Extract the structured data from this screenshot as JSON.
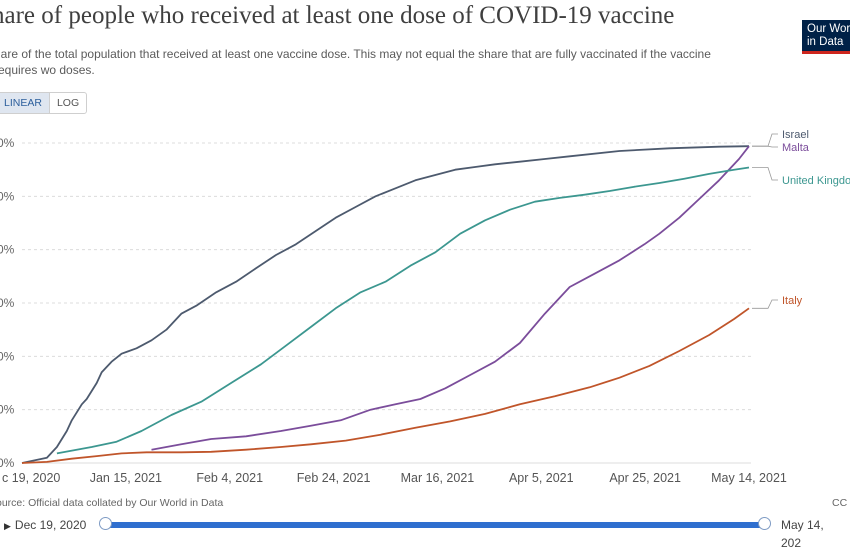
{
  "header": {
    "title": "hare of people who received at least one dose of COVID-19 vaccine",
    "subtitle": "hare of the total population that received at least one vaccine dose. This may not equal the share that are fully vaccinated if the vaccine requires wo doses.",
    "logo_line1": "Our Worl",
    "logo_line2": "in Data"
  },
  "scale_toggle": {
    "linear": "LINEAR",
    "log": "LOG",
    "selected": "LINEAR"
  },
  "footer": {
    "source": "ource: Official data collated by Our World in Data",
    "license": "CC"
  },
  "timeline": {
    "start_label": "Dec 19, 2020",
    "end_label": "May 14, 202",
    "start_arrow": "▶"
  },
  "colors": {
    "Israel": "#4d5a6e",
    "Malta": "#7b4d9b",
    "United Kingdom": "#3c9790",
    "Italy": "#c0552a",
    "grid": "#dcdcdc",
    "timeline": "#2f6fcf"
  },
  "chart_data": {
    "type": "line",
    "x_start_date": "2020-12-19",
    "x_end_date": "2021-05-14",
    "x_ticks": [
      "c 19, 2020",
      "Jan 15, 2021",
      "Feb 4, 2021",
      "Feb 24, 2021",
      "Mar 16, 2021",
      "Apr 5, 2021",
      "Apr 25, 2021",
      "May 14, 2021"
    ],
    "y_ticks": [
      "0%",
      "0%",
      "0%",
      "0%",
      "0%",
      "0%",
      "0%"
    ],
    "ylim": [
      0,
      60
    ],
    "y_unit": "%",
    "series": [
      {
        "name": "Israel",
        "end_label": "Israel",
        "points": [
          [
            0,
            0
          ],
          [
            5,
            1
          ],
          [
            7,
            3
          ],
          [
            9,
            6
          ],
          [
            10,
            8
          ],
          [
            12,
            11
          ],
          [
            13,
            12
          ],
          [
            15,
            15
          ],
          [
            16,
            17
          ],
          [
            18,
            19
          ],
          [
            20,
            20.5
          ],
          [
            23,
            21.5
          ],
          [
            26,
            23
          ],
          [
            29,
            25
          ],
          [
            32,
            28
          ],
          [
            35,
            29.5
          ],
          [
            39,
            32
          ],
          [
            43,
            34
          ],
          [
            47,
            36.5
          ],
          [
            51,
            39
          ],
          [
            55,
            41
          ],
          [
            59,
            43.5
          ],
          [
            63,
            46
          ],
          [
            67,
            48
          ],
          [
            71,
            50
          ],
          [
            75,
            51.5
          ],
          [
            79,
            53
          ],
          [
            83,
            54
          ],
          [
            87,
            55
          ],
          [
            91,
            55.5
          ],
          [
            95,
            56
          ],
          [
            100,
            56.5
          ],
          [
            105,
            57
          ],
          [
            110,
            57.5
          ],
          [
            120,
            58.5
          ],
          [
            130,
            59
          ],
          [
            140,
            59.3
          ],
          [
            146,
            59.4
          ]
        ]
      },
      {
        "name": "Malta",
        "end_label": "Malta",
        "points": [
          [
            26,
            2.5
          ],
          [
            32,
            3.5
          ],
          [
            38,
            4.5
          ],
          [
            45,
            5
          ],
          [
            52,
            6
          ],
          [
            58,
            7
          ],
          [
            64,
            8
          ],
          [
            70,
            10
          ],
          [
            75,
            11
          ],
          [
            80,
            12
          ],
          [
            85,
            14
          ],
          [
            90,
            16.5
          ],
          [
            95,
            19
          ],
          [
            100,
            22.5
          ],
          [
            105,
            28
          ],
          [
            110,
            33
          ],
          [
            115,
            35.5
          ],
          [
            120,
            38
          ],
          [
            125,
            41
          ],
          [
            128,
            43
          ],
          [
            132,
            46
          ],
          [
            136,
            49.5
          ],
          [
            140,
            53
          ],
          [
            144,
            57
          ],
          [
            146,
            59.4
          ]
        ]
      },
      {
        "name": "United Kingdom",
        "end_label": "United Kingdo",
        "points": [
          [
            7,
            1.8
          ],
          [
            14,
            3
          ],
          [
            19,
            4
          ],
          [
            24,
            6
          ],
          [
            30,
            9
          ],
          [
            36,
            11.5
          ],
          [
            42,
            15
          ],
          [
            48,
            18.5
          ],
          [
            53,
            22
          ],
          [
            58,
            25.5
          ],
          [
            63,
            29
          ],
          [
            68,
            32
          ],
          [
            73,
            34
          ],
          [
            78,
            37
          ],
          [
            83,
            39.5
          ],
          [
            88,
            43
          ],
          [
            93,
            45.5
          ],
          [
            98,
            47.5
          ],
          [
            103,
            49
          ],
          [
            108,
            49.7
          ],
          [
            113,
            50.3
          ],
          [
            118,
            51
          ],
          [
            123,
            51.8
          ],
          [
            128,
            52.5
          ],
          [
            133,
            53.3
          ],
          [
            138,
            54.2
          ],
          [
            143,
            55
          ],
          [
            146,
            55.4
          ]
        ]
      },
      {
        "name": "Italy",
        "end_label": "Italy",
        "points": [
          [
            0,
            0
          ],
          [
            5,
            0.2
          ],
          [
            10,
            0.8
          ],
          [
            15,
            1.3
          ],
          [
            20,
            1.8
          ],
          [
            25,
            2
          ],
          [
            32,
            2
          ],
          [
            38,
            2.1
          ],
          [
            45,
            2.5
          ],
          [
            52,
            3
          ],
          [
            58,
            3.5
          ],
          [
            65,
            4.2
          ],
          [
            72,
            5.3
          ],
          [
            79,
            6.6
          ],
          [
            86,
            7.8
          ],
          [
            93,
            9.2
          ],
          [
            100,
            11
          ],
          [
            107,
            12.5
          ],
          [
            114,
            14.2
          ],
          [
            120,
            16
          ],
          [
            126,
            18.2
          ],
          [
            132,
            21
          ],
          [
            138,
            24
          ],
          [
            143,
            27
          ],
          [
            146,
            29
          ]
        ]
      }
    ]
  }
}
